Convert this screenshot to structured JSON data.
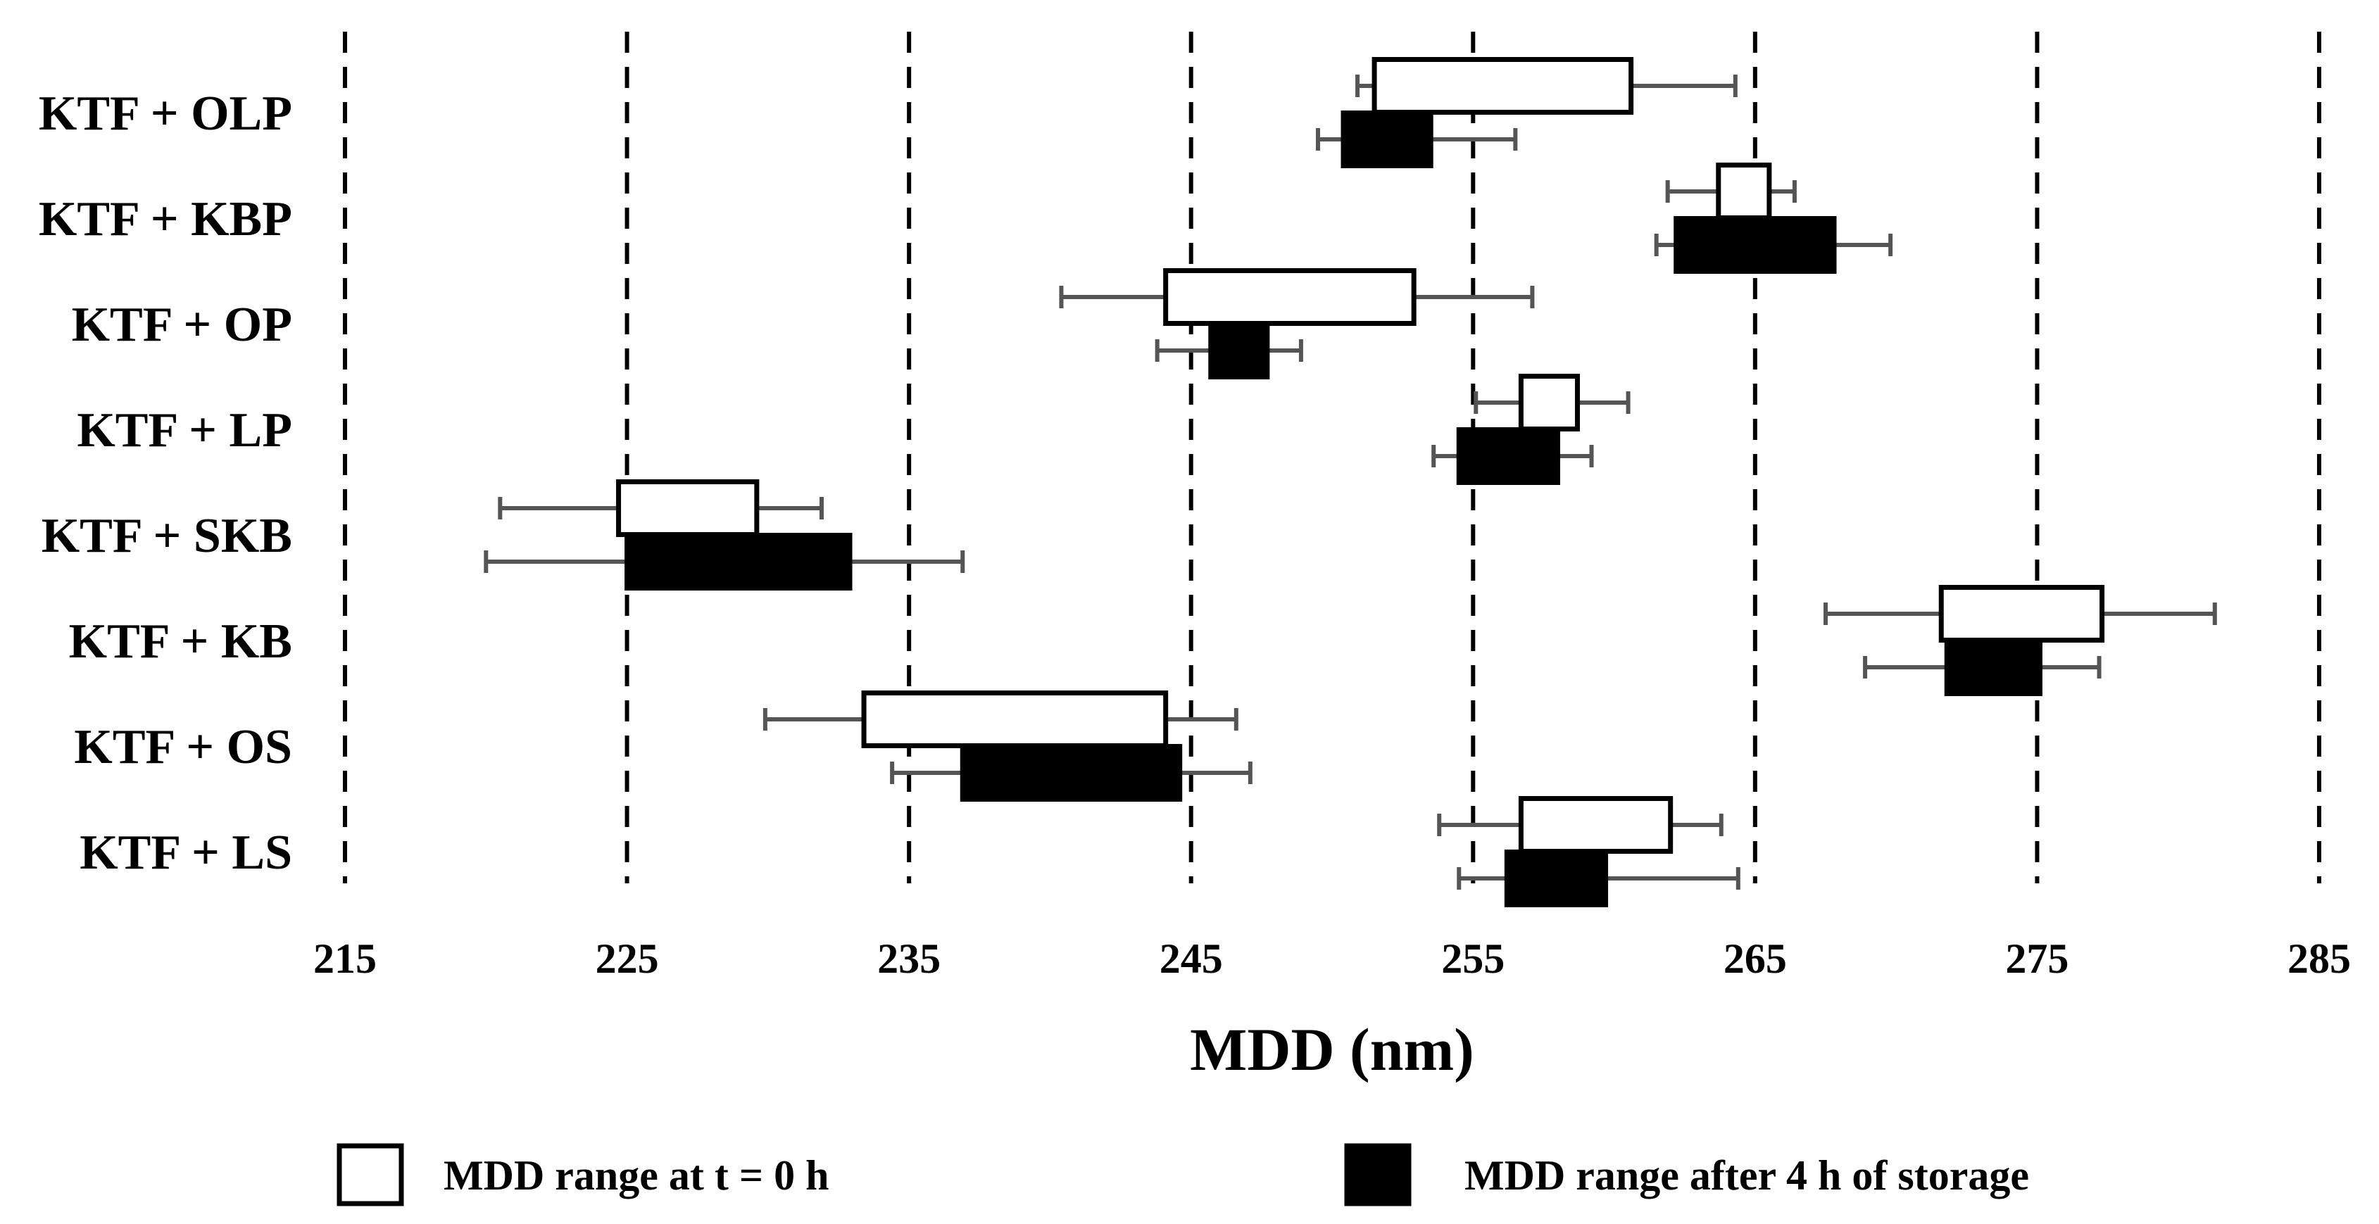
{
  "chart_data": {
    "type": "floating-bar",
    "xlabel": "MDD (nm)",
    "xlim": [
      215,
      285
    ],
    "xticks": [
      215,
      225,
      235,
      245,
      255,
      265,
      275,
      285
    ],
    "categories": [
      "KTF + OLP",
      "KTF + KBP",
      "KTF + OP",
      "KTF + LP",
      "KTF + SKB",
      "KTF + KB",
      "KTF + OS",
      "KTF + LS"
    ],
    "series": [
      {
        "name": "MDD range at t = 0 h",
        "fill": "#ffffff",
        "ranges": [
          {
            "low": 251.5,
            "high": 260.6,
            "err_low": 250.9,
            "err_high": 264.3
          },
          {
            "low": 263.7,
            "high": 265.5,
            "err_low": 261.9,
            "err_high": 266.4
          },
          {
            "low": 244.1,
            "high": 252.9,
            "err_low": 240.4,
            "err_high": 257.1
          },
          {
            "low": 256.7,
            "high": 258.7,
            "err_low": 255.1,
            "err_high": 260.5
          },
          {
            "low": 224.7,
            "high": 229.6,
            "err_low": 220.5,
            "err_high": 231.9
          },
          {
            "low": 271.6,
            "high": 277.3,
            "err_low": 267.5,
            "err_high": 281.3
          },
          {
            "low": 233.4,
            "high": 244.1,
            "err_low": 229.9,
            "err_high": 246.6
          },
          {
            "low": 256.7,
            "high": 262.0,
            "err_low": 253.8,
            "err_high": 263.8
          }
        ]
      },
      {
        "name": "MDD range after 4 h of storage",
        "fill": "#000000",
        "ranges": [
          {
            "low": 250.4,
            "high": 253.5,
            "err_low": 249.5,
            "err_high": 256.5
          },
          {
            "low": 262.2,
            "high": 267.8,
            "err_low": 261.5,
            "err_high": 269.8
          },
          {
            "low": 245.7,
            "high": 247.7,
            "err_low": 243.8,
            "err_high": 248.9
          },
          {
            "low": 254.5,
            "high": 258.0,
            "err_low": 253.6,
            "err_high": 259.2
          },
          {
            "low": 225.0,
            "high": 232.9,
            "err_low": 220.0,
            "err_high": 236.9
          },
          {
            "low": 271.8,
            "high": 275.1,
            "err_low": 268.9,
            "err_high": 277.2
          },
          {
            "low": 236.9,
            "high": 244.6,
            "err_low": 234.4,
            "err_high": 247.1
          },
          {
            "low": 256.2,
            "high": 259.7,
            "err_low": 254.5,
            "err_high": 264.4
          }
        ]
      }
    ]
  }
}
